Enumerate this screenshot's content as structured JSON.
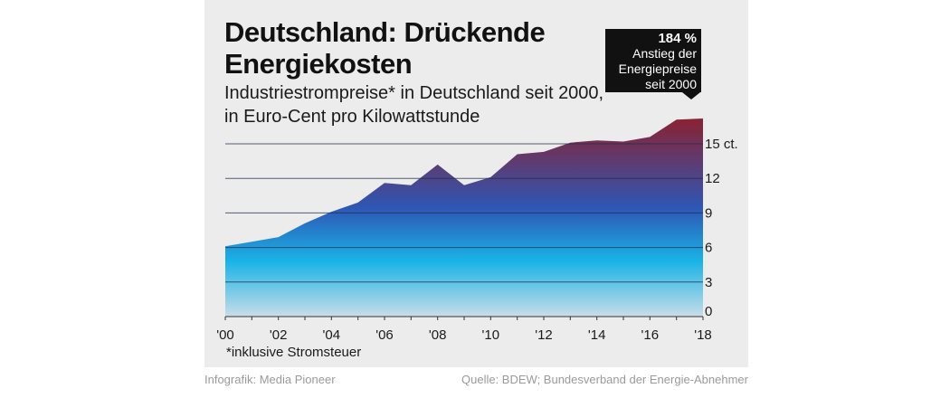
{
  "header": {
    "title": "Deutschland: Drückende Energiekosten",
    "subtitle": "Industriestrompreise* in Deutschland seit 2000, in Euro-Cent pro Kilowattstunde"
  },
  "callout": {
    "value": "184 %",
    "lines": [
      "Anstieg der",
      "Energiepreise",
      "seit 2000"
    ]
  },
  "footnote": "*inklusive Stromsteuer",
  "footer": {
    "credit": "Infografik: Media Pioneer",
    "source": "Quelle: BDEW; Bundesverband der Energie-Abnehmer"
  },
  "colors": {
    "panel_background": "#ececec",
    "area_bottom": "#c9dde8",
    "area_light_blue": "#1ab3e6",
    "area_blue": "#2e56b4",
    "area_top_red": "#8b2232"
  },
  "chart_data": {
    "type": "area",
    "title": "Deutschland: Drückende Energiekosten",
    "subtitle": "Industriestrompreise* in Deutschland seit 2000, in Euro-Cent pro Kilowattstunde",
    "x": [
      2000,
      2001,
      2002,
      2003,
      2004,
      2005,
      2006,
      2007,
      2008,
      2009,
      2010,
      2011,
      2012,
      2013,
      2014,
      2015,
      2016,
      2017,
      2018
    ],
    "values": [
      6.1,
      6.5,
      6.9,
      8.1,
      9.1,
      9.9,
      11.6,
      11.4,
      13.2,
      11.4,
      12.1,
      14.1,
      14.3,
      15.1,
      15.3,
      15.2,
      15.6,
      17.1,
      17.2
    ],
    "x_tick_labels": [
      "'00",
      "'02",
      "'04",
      "'06",
      "'08",
      "'10",
      "'12",
      "'14",
      "'16",
      "'18"
    ],
    "x_ticks": [
      2000,
      2002,
      2004,
      2006,
      2008,
      2010,
      2012,
      2014,
      2016,
      2018
    ],
    "y_ticks": [
      0,
      3,
      6,
      9,
      12,
      15
    ],
    "y_tick_labels": [
      "0",
      "3",
      "6",
      "9",
      "12",
      "15 ct."
    ],
    "ylim": [
      0,
      17.2
    ],
    "xlim": [
      2000,
      2018
    ],
    "grid": true,
    "axis_position": "right"
  }
}
